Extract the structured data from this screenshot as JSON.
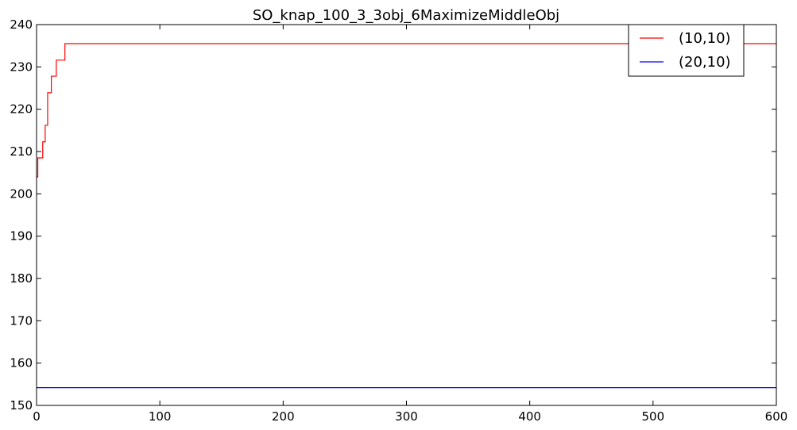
{
  "chart_data": {
    "type": "line",
    "title": "SO_knap_100_3_3obj_6MaximizeMiddleObj",
    "xlabel": "",
    "ylabel": "",
    "xlim": [
      0,
      600
    ],
    "ylim": [
      150,
      240
    ],
    "xticks": [
      0,
      100,
      200,
      300,
      400,
      500,
      600
    ],
    "yticks": [
      150,
      160,
      170,
      180,
      190,
      200,
      210,
      220,
      230,
      240
    ],
    "xtick_labels": [
      "0",
      "100",
      "200",
      "300",
      "400",
      "500",
      "600"
    ],
    "ytick_labels": [
      "150",
      "160",
      "170",
      "180",
      "190",
      "200",
      "210",
      "220",
      "230",
      "240"
    ],
    "grid": false,
    "legend_position": "top-right",
    "series": [
      {
        "name": "(10,10)",
        "color": "#ff0000",
        "step": true,
        "x": [
          0,
          1,
          5,
          7,
          9,
          12,
          16,
          21,
          23,
          600
        ],
        "y": [
          204,
          208.5,
          212.3,
          216.2,
          223.9,
          227.8,
          231.6,
          231.6,
          235.5,
          235.5
        ]
      },
      {
        "name": "(20,10)",
        "color": "#0000ff",
        "step": false,
        "x": [
          0,
          600
        ],
        "y": [
          154.2,
          154.2
        ]
      }
    ]
  }
}
